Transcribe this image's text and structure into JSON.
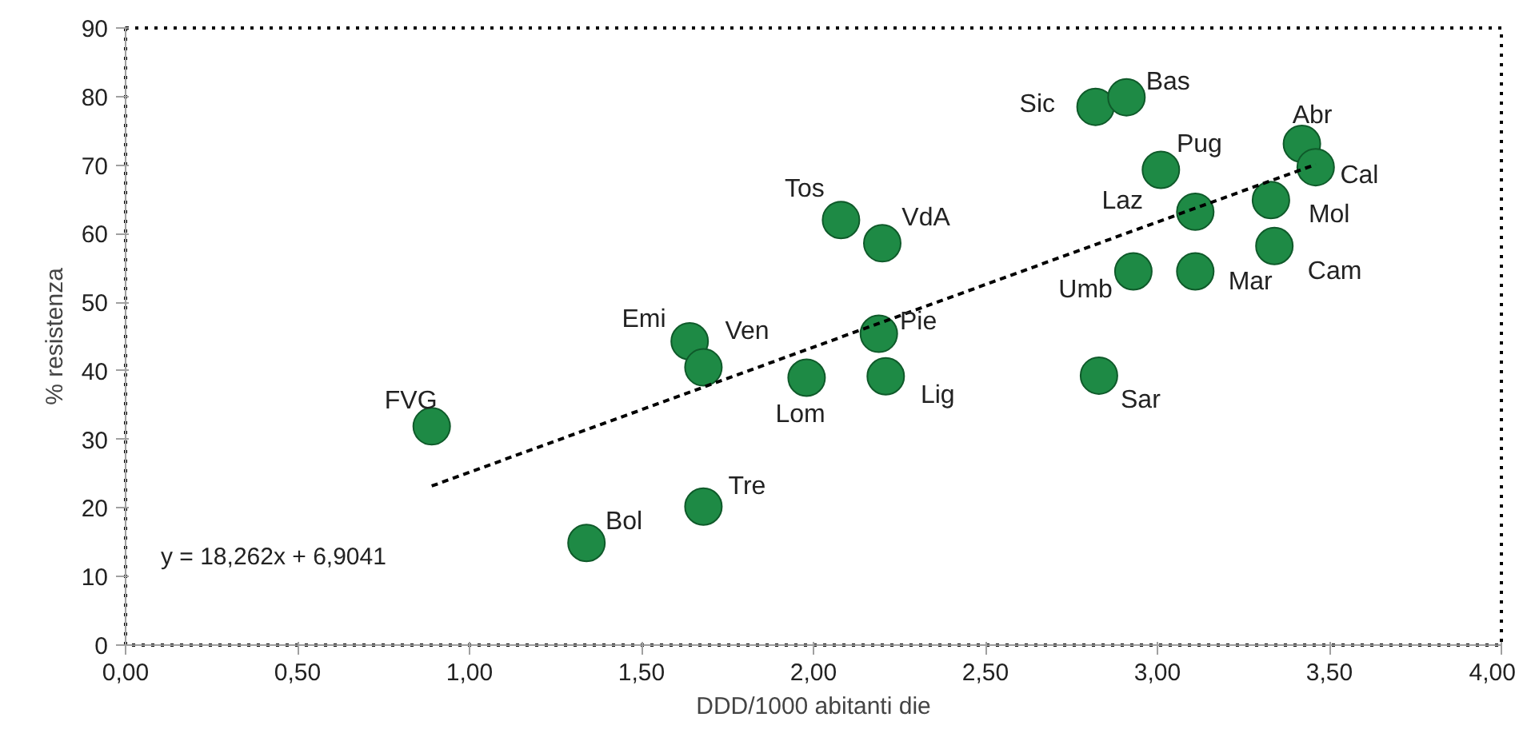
{
  "chart_data": {
    "type": "scatter",
    "xlabel": "DDD/1000 abitanti die",
    "ylabel": "% resistenza",
    "x": [
      0.89,
      1.34,
      1.68,
      1.64,
      1.68,
      1.98,
      2.08,
      2.2,
      2.19,
      2.21,
      2.82,
      2.91,
      3.01,
      3.11,
      3.42,
      3.46,
      3.33,
      3.34,
      2.93,
      3.11,
      2.83
    ],
    "series": [
      {
        "color": "#1e8a45",
        "values": [
          31.9,
          14.9,
          20.2,
          44.3,
          40.5,
          39,
          62,
          58.6,
          45.4,
          39.2,
          78.5,
          79.9,
          69.3,
          63.2,
          73.1,
          69.7,
          64.9,
          58.2,
          54.5,
          54.5,
          39.3
        ]
      },
      {
        "type": "line",
        "x": [
          0.89,
          3.46
        ],
        "color": "#000000",
        "line_style": "dashed",
        "marker": "none",
        "values": [
          23.2,
          70.1
        ]
      }
    ],
    "annotations": [
      {
        "text": "FVG",
        "x": 0.89,
        "y": 31.9
      },
      {
        "text": "Bol",
        "x": 1.34,
        "y": 14.9
      },
      {
        "text": "Tre",
        "x": 1.68,
        "y": 20.2
      },
      {
        "text": "Emi",
        "x": 1.64,
        "y": 44.3
      },
      {
        "text": "Ven",
        "x": 1.68,
        "y": 40.5
      },
      {
        "text": "Lom",
        "x": 1.98,
        "y": 39
      },
      {
        "text": "Tos",
        "x": 2.08,
        "y": 62
      },
      {
        "text": "VdA",
        "x": 2.2,
        "y": 58.6
      },
      {
        "text": "Pie",
        "x": 2.19,
        "y": 45.4
      },
      {
        "text": "Lig",
        "x": 2.21,
        "y": 39.2
      },
      {
        "text": "Sic",
        "x": 2.82,
        "y": 78.5
      },
      {
        "text": "Bas",
        "x": 2.91,
        "y": 79.9
      },
      {
        "text": "Pug",
        "x": 3.01,
        "y": 69.3
      },
      {
        "text": "Laz",
        "x": 3.11,
        "y": 63.2
      },
      {
        "text": "Abr",
        "x": 3.42,
        "y": 73.1
      },
      {
        "text": "Cal",
        "x": 3.46,
        "y": 69.7
      },
      {
        "text": "Mol",
        "x": 3.33,
        "y": 64.9
      },
      {
        "text": "Cam",
        "x": 3.34,
        "y": 58.2
      },
      {
        "text": "Umb",
        "x": 2.93,
        "y": 54.5
      },
      {
        "text": "Mar",
        "x": 3.11,
        "y": 54.5
      },
      {
        "text": "Sar",
        "x": 2.83,
        "y": 39.3
      },
      "y = 18,262x + 6,9041"
    ],
    "xlim": [
      0,
      4
    ],
    "ylim": [
      0,
      90
    ],
    "xticks": [
      {
        "value": 0,
        "label": "0,00"
      },
      {
        "value": 0.5,
        "label": "0,50"
      },
      {
        "value": 1,
        "label": "1,00"
      },
      {
        "value": 1.5,
        "label": "1,50"
      },
      {
        "value": 2,
        "label": "2,00"
      },
      {
        "value": 2.5,
        "label": "2,50"
      },
      {
        "value": 3,
        "label": "3,00"
      },
      {
        "value": 3.5,
        "label": "3,50"
      },
      {
        "value": 4,
        "label": "4,00"
      }
    ],
    "yticks": [
      0,
      10,
      20,
      30,
      40,
      50,
      60,
      70,
      80,
      90
    ],
    "grid": false,
    "marker": "circle"
  }
}
